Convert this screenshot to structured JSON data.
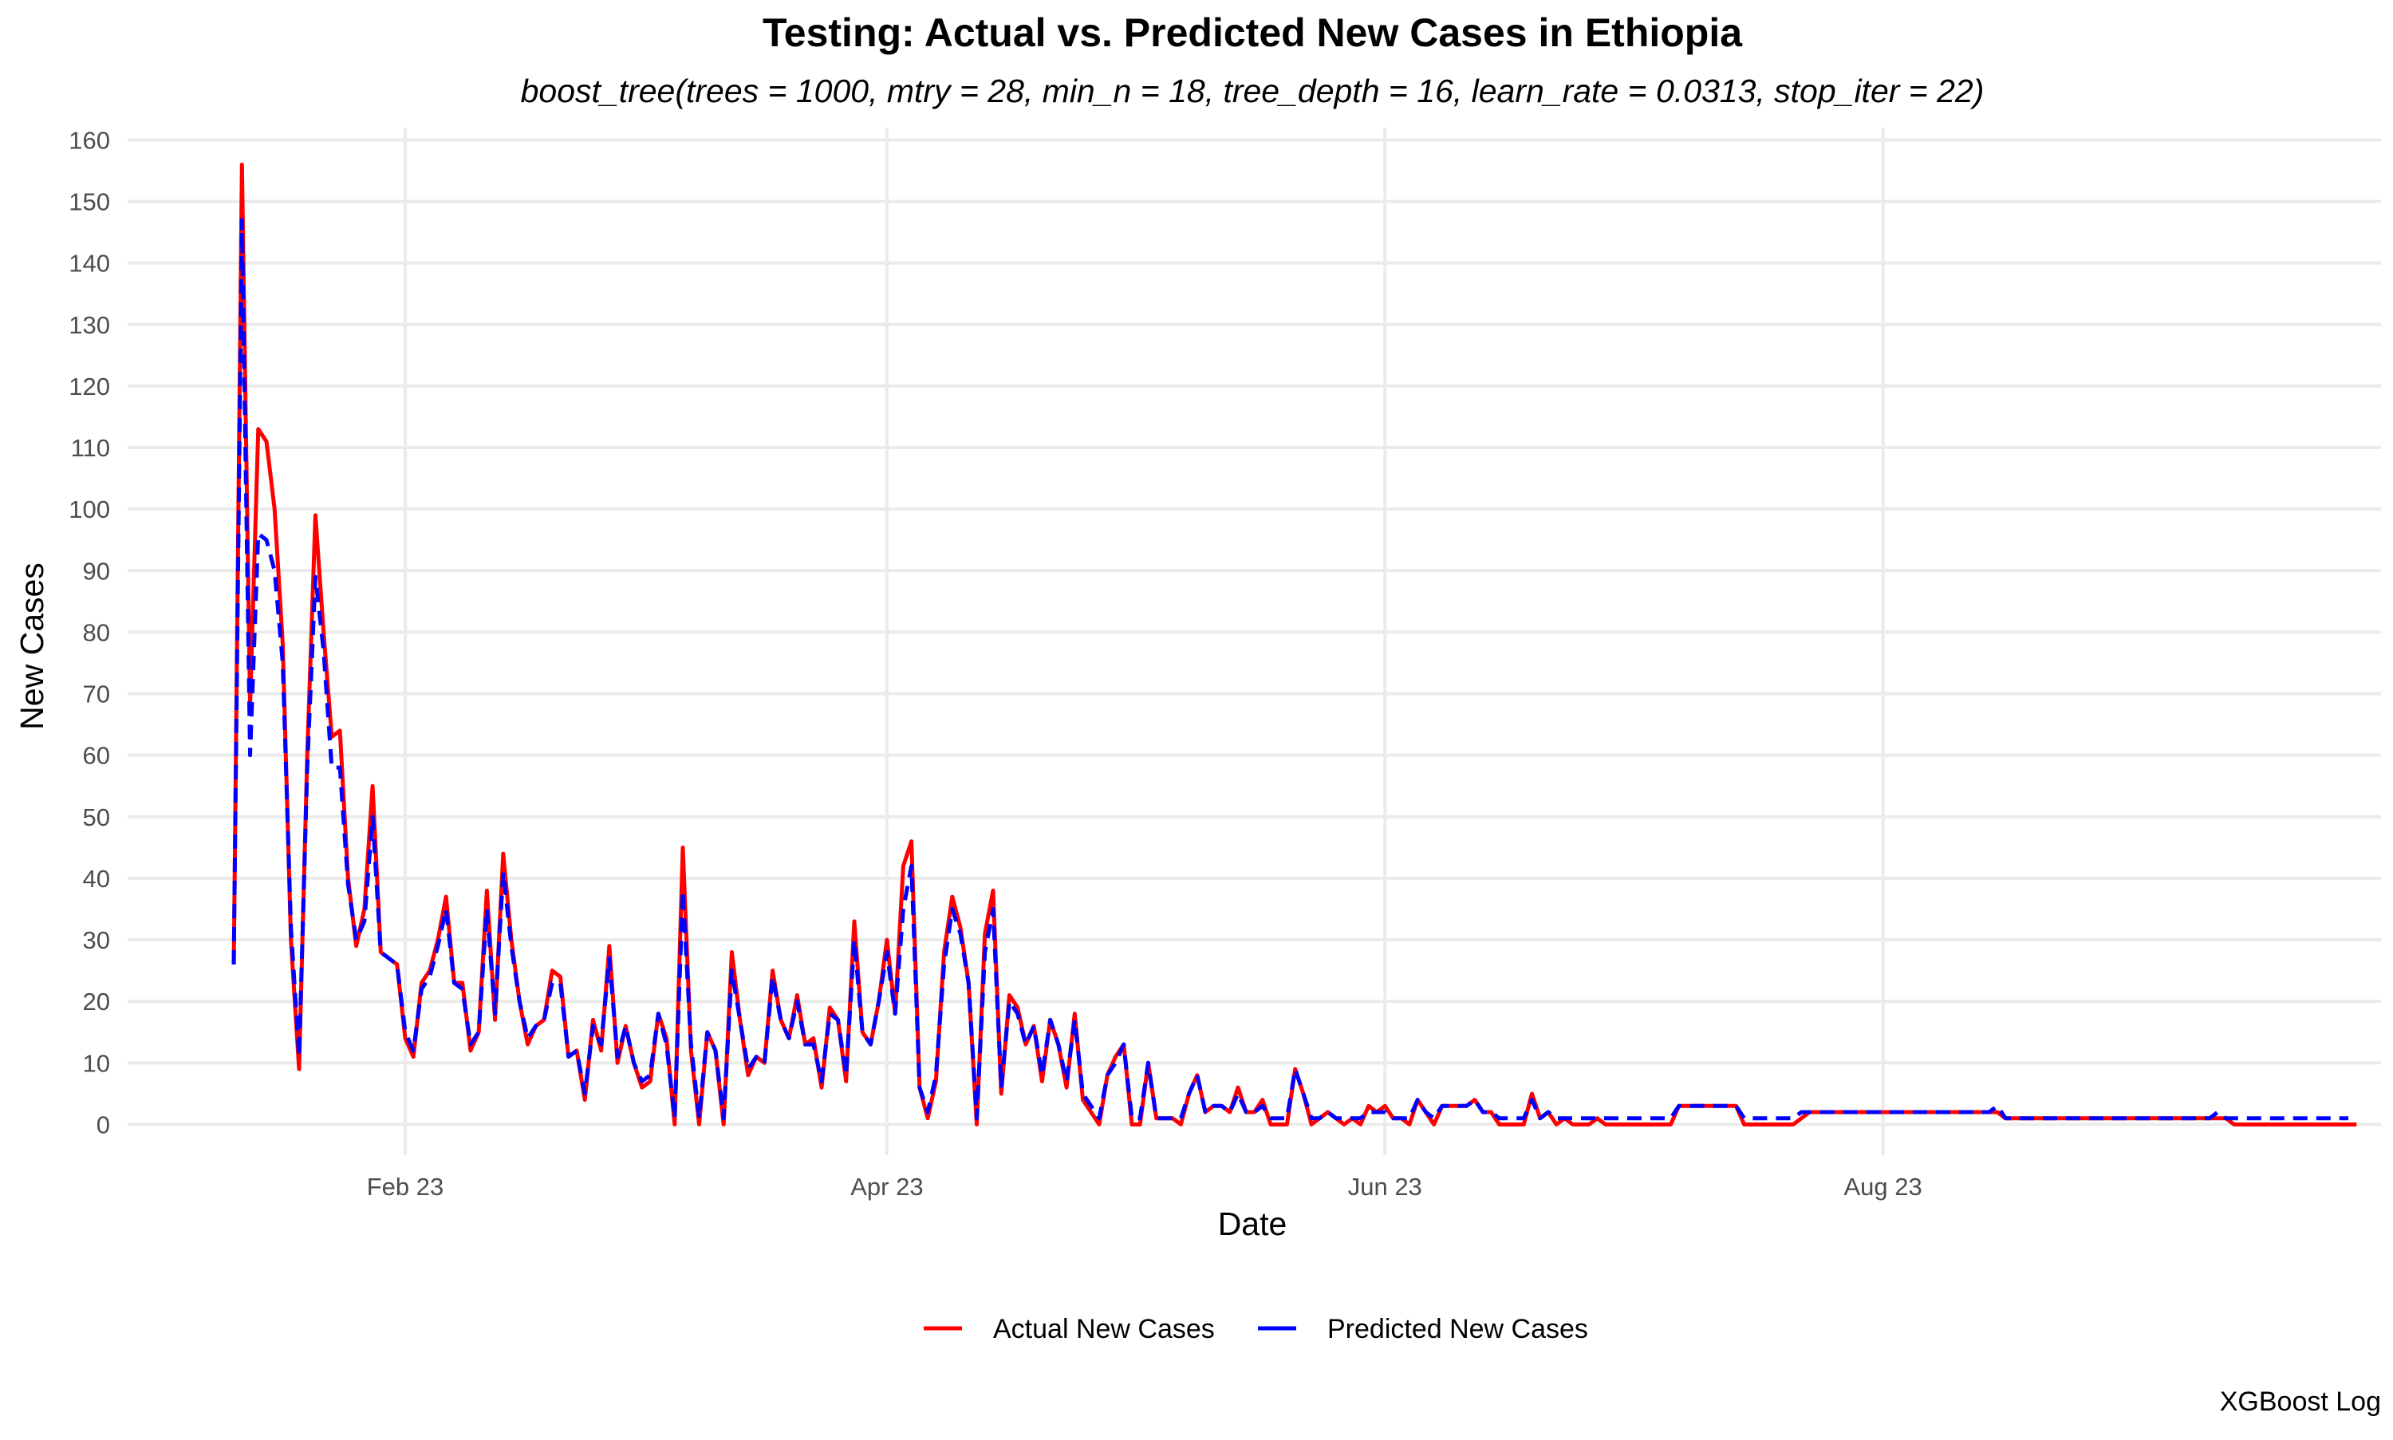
{
  "chart_data": {
    "type": "line",
    "title": "Testing: Actual vs. Predicted New Cases in Ethiopia",
    "subtitle": "boost_tree(trees = 1000, mtry = 28, min_n = 18, tree_depth = 16, learn_rate = 0.0313, stop_iter = 22)",
    "xlabel": "Date",
    "ylabel": "New Cases",
    "caption": "XGBoost Log",
    "x_ticks": [
      {
        "date": "2023-02-01",
        "label": "Feb 23"
      },
      {
        "date": "2023-04-01",
        "label": "Apr 23"
      },
      {
        "date": "2023-06-01",
        "label": "Jun 23"
      },
      {
        "date": "2023-08-01",
        "label": "Aug 23"
      }
    ],
    "xlim": [
      "2022-12-29",
      "2023-10-01"
    ],
    "ylim": [
      -5,
      162
    ],
    "y_ticks": [
      0,
      10,
      20,
      30,
      40,
      50,
      60,
      70,
      80,
      90,
      100,
      110,
      120,
      130,
      140,
      150,
      160
    ],
    "grid": true,
    "legend_position": "bottom",
    "series": [
      {
        "name": "Actual New Cases",
        "color": "#ff0000",
        "dash": "solid",
        "start_date": "2023-01-11",
        "values": [
          26,
          156,
          68,
          113,
          111,
          100,
          78,
          30,
          9,
          60,
          99,
          80,
          63,
          64,
          40,
          29,
          35,
          55,
          28,
          27,
          26,
          14,
          11,
          23,
          25,
          30,
          37,
          23,
          23,
          12,
          15,
          38,
          17,
          44,
          30,
          20,
          13,
          16,
          17,
          25,
          24,
          11,
          12,
          4,
          17,
          12,
          29,
          10,
          16,
          10,
          6,
          7,
          18,
          14,
          0,
          45,
          12,
          0,
          15,
          12,
          0,
          28,
          17,
          8,
          11,
          10,
          25,
          17,
          14,
          21,
          13,
          14,
          6,
          19,
          17,
          7,
          33,
          15,
          13,
          20,
          30,
          18,
          42,
          46,
          6,
          1,
          7,
          28,
          37,
          32,
          23,
          0,
          31,
          38,
          5,
          21,
          19,
          13,
          16,
          7,
          17,
          13,
          6,
          18,
          4,
          2,
          0,
          8,
          11,
          13,
          0,
          0,
          10,
          1,
          1,
          1,
          0,
          5,
          8,
          2,
          3,
          3,
          2,
          6,
          2,
          2,
          4,
          0,
          0,
          0,
          9,
          5,
          0,
          1,
          2,
          1,
          0,
          1,
          0,
          3,
          2,
          3,
          1,
          1,
          0,
          4,
          2,
          0,
          3,
          3,
          3,
          3,
          4,
          2,
          2,
          0,
          0,
          0,
          0,
          5,
          1,
          2,
          0,
          1,
          0,
          0,
          0,
          1,
          0,
          0,
          0,
          0,
          0,
          0,
          0,
          0,
          0,
          3,
          3,
          3,
          3,
          3,
          3,
          3,
          3,
          0,
          0,
          0,
          0,
          0,
          0,
          0,
          1,
          2,
          2,
          2,
          2,
          2,
          2,
          2,
          2,
          2,
          2,
          2,
          2,
          2,
          2,
          2,
          2,
          2,
          2,
          2,
          2,
          2,
          2,
          2,
          2,
          1,
          1,
          1,
          1,
          1,
          1,
          1,
          1,
          1,
          1,
          1,
          1,
          1,
          1,
          1,
          1,
          1,
          1,
          1,
          1,
          1,
          1,
          1,
          1,
          1,
          1,
          1,
          1,
          0,
          0,
          0,
          0,
          0,
          0,
          0,
          0,
          0,
          0,
          0,
          0,
          0,
          0,
          0,
          0
        ]
      },
      {
        "name": "Predicted New Cases",
        "color": "#0000ff",
        "dash": "dashed",
        "start_date": "2023-01-11",
        "values": [
          26,
          147,
          60,
          96,
          95,
          90,
          75,
          32,
          11,
          58,
          89,
          77,
          58,
          58,
          39,
          30,
          33,
          50,
          28,
          27,
          26,
          15,
          12,
          22,
          24,
          29,
          35,
          23,
          22,
          13,
          15,
          35,
          18,
          41,
          29,
          20,
          14,
          16,
          17,
          23,
          23,
          11,
          12,
          5,
          16,
          13,
          27,
          11,
          16,
          10,
          7,
          8,
          18,
          13,
          1,
          38,
          13,
          1,
          15,
          12,
          1,
          25,
          17,
          9,
          11,
          10,
          24,
          17,
          14,
          20,
          13,
          13,
          7,
          18,
          17,
          8,
          30,
          15,
          13,
          20,
          28,
          18,
          35,
          42,
          6,
          2,
          8,
          26,
          35,
          31,
          23,
          1,
          28,
          35,
          6,
          20,
          18,
          13,
          16,
          8,
          17,
          13,
          7,
          17,
          5,
          3,
          1,
          8,
          10,
          13,
          1,
          1,
          10,
          1,
          1,
          1,
          1,
          5,
          8,
          2,
          3,
          3,
          2,
          5,
          2,
          2,
          3,
          1,
          1,
          1,
          9,
          5,
          1,
          1,
          2,
          1,
          1,
          1,
          1,
          2,
          2,
          2,
          1,
          1,
          1,
          4,
          2,
          1,
          3,
          3,
          3,
          3,
          4,
          2,
          2,
          1,
          1,
          1,
          1,
          4,
          1,
          2,
          1,
          1,
          1,
          1,
          1,
          1,
          1,
          1,
          1,
          1,
          1,
          1,
          1,
          1,
          1,
          3,
          3,
          3,
          3,
          3,
          3,
          3,
          3,
          1,
          1,
          1,
          1,
          1,
          1,
          1,
          2,
          2,
          2,
          2,
          2,
          2,
          2,
          2,
          2,
          2,
          2,
          2,
          2,
          2,
          2,
          2,
          2,
          2,
          2,
          2,
          2,
          2,
          2,
          2,
          3,
          1,
          1,
          1,
          1,
          1,
          1,
          1,
          1,
          1,
          1,
          1,
          1,
          1,
          1,
          1,
          1,
          1,
          1,
          1,
          1,
          1,
          1,
          1,
          1,
          1,
          1,
          2,
          1,
          1,
          1,
          1,
          1,
          1,
          1,
          1,
          1,
          1,
          1,
          1,
          1,
          1,
          1,
          1
        ]
      }
    ]
  }
}
